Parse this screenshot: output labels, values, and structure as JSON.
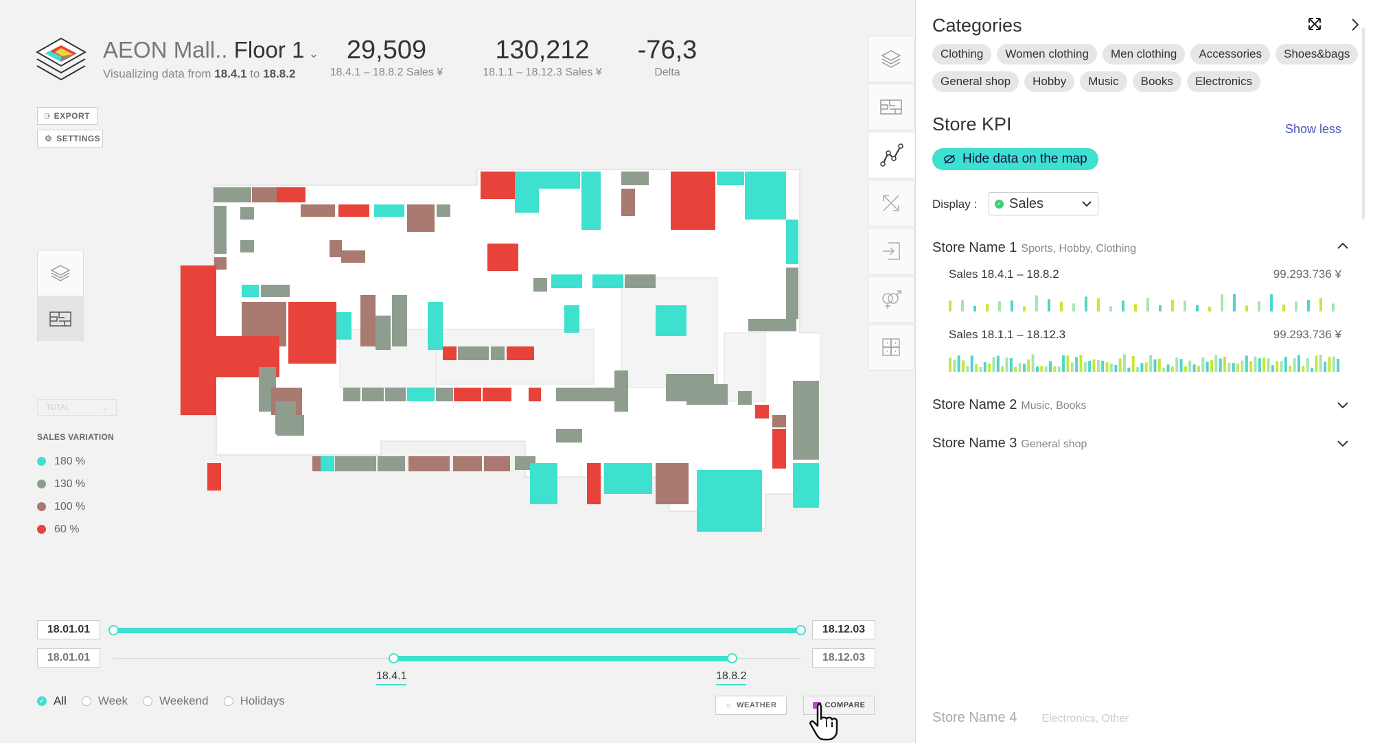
{
  "header": {
    "mall_name": "AEON Mall..",
    "floor": "Floor 1",
    "subtitle_prefix": "Visualizing data from",
    "date_from": "18.4.1",
    "subtitle_to": "to",
    "date_to": "18.8.2"
  },
  "kpis": [
    {
      "value": "29,509",
      "label": "18.4.1 – 18.8.2 Sales ¥"
    },
    {
      "value": "130,212",
      "label": "18.1.1 – 18.12.3 Sales ¥"
    },
    {
      "value": "-76,3",
      "label": "Delta"
    }
  ],
  "actions": {
    "export": "EXPORT",
    "settings": "SETTINGS",
    "weather": "WEATHER",
    "compare": "COMPARE"
  },
  "total_select": "TOTAL",
  "legend": {
    "title": "SALES VARIATION",
    "items": [
      {
        "label": "180 %",
        "color": "#3ee0cf"
      },
      {
        "label": "130 %",
        "color": "#8f9d8f"
      },
      {
        "label": "100 %",
        "color": "#a87a70"
      },
      {
        "label": "60 %",
        "color": "#e7433a"
      }
    ]
  },
  "sliders": {
    "range1": {
      "start": "18.01.01",
      "end": "18.12.03",
      "from_fraction": 0.0,
      "to_fraction": 1.0
    },
    "range2": {
      "start": "18.01.01",
      "end": "18.12.03",
      "from_label": "18.4.1",
      "to_label": "18.8.2",
      "from_fraction": 0.4,
      "to_fraction": 0.86
    }
  },
  "filters": {
    "all": "All",
    "week": "Week",
    "weekend": "Weekend",
    "holidays": "Holidays",
    "selected": "All"
  },
  "panel": {
    "categories_title": "Categories",
    "categories": [
      "Clothing",
      "Women clothing",
      "Men clothing",
      "Accessories",
      "Shoes&bags",
      "General shop",
      "Hobby",
      "Music",
      "Books",
      "Electronics"
    ],
    "kpi_title": "Store KPI",
    "show_less": "Show less",
    "hide_data": "Hide data on the map",
    "display_label": "Display :",
    "display_value": "Sales",
    "stores": [
      {
        "name": "Store Name 1",
        "categories": "Sports, Hobby, Clothing",
        "expanded": true,
        "series": [
          {
            "label": "Sales 18.4.1 – 18.8.2",
            "value": "99.293.736 ¥"
          },
          {
            "label": "Sales 18.1.1 – 18.12.3",
            "value": "99.293.736 ¥"
          }
        ]
      },
      {
        "name": "Store Name 2",
        "categories": "Music, Books",
        "expanded": false
      },
      {
        "name": "Store Name 3",
        "categories": "General shop",
        "expanded": false
      },
      {
        "name": "Store Name 4",
        "categories": "Electronics, Other",
        "expanded": false
      }
    ]
  },
  "colors": {
    "accent": "#3ee0cf",
    "red": "#e7433a",
    "brown": "#a87a70",
    "grey": "#8f9d8f",
    "link": "#4c52b8"
  },
  "icons": [
    "logo-icon",
    "export-icon",
    "gear-icon",
    "layers-icon",
    "floorplan-icon",
    "trend-line-icon",
    "flow-icon",
    "entrance-icon",
    "gender-icon",
    "grid-icon",
    "expand-icon",
    "chevron-right-icon",
    "eye-off-icon",
    "chevron-down-icon",
    "chevron-up-icon",
    "sun-icon",
    "compare-icon",
    "hand-cursor-icon"
  ]
}
